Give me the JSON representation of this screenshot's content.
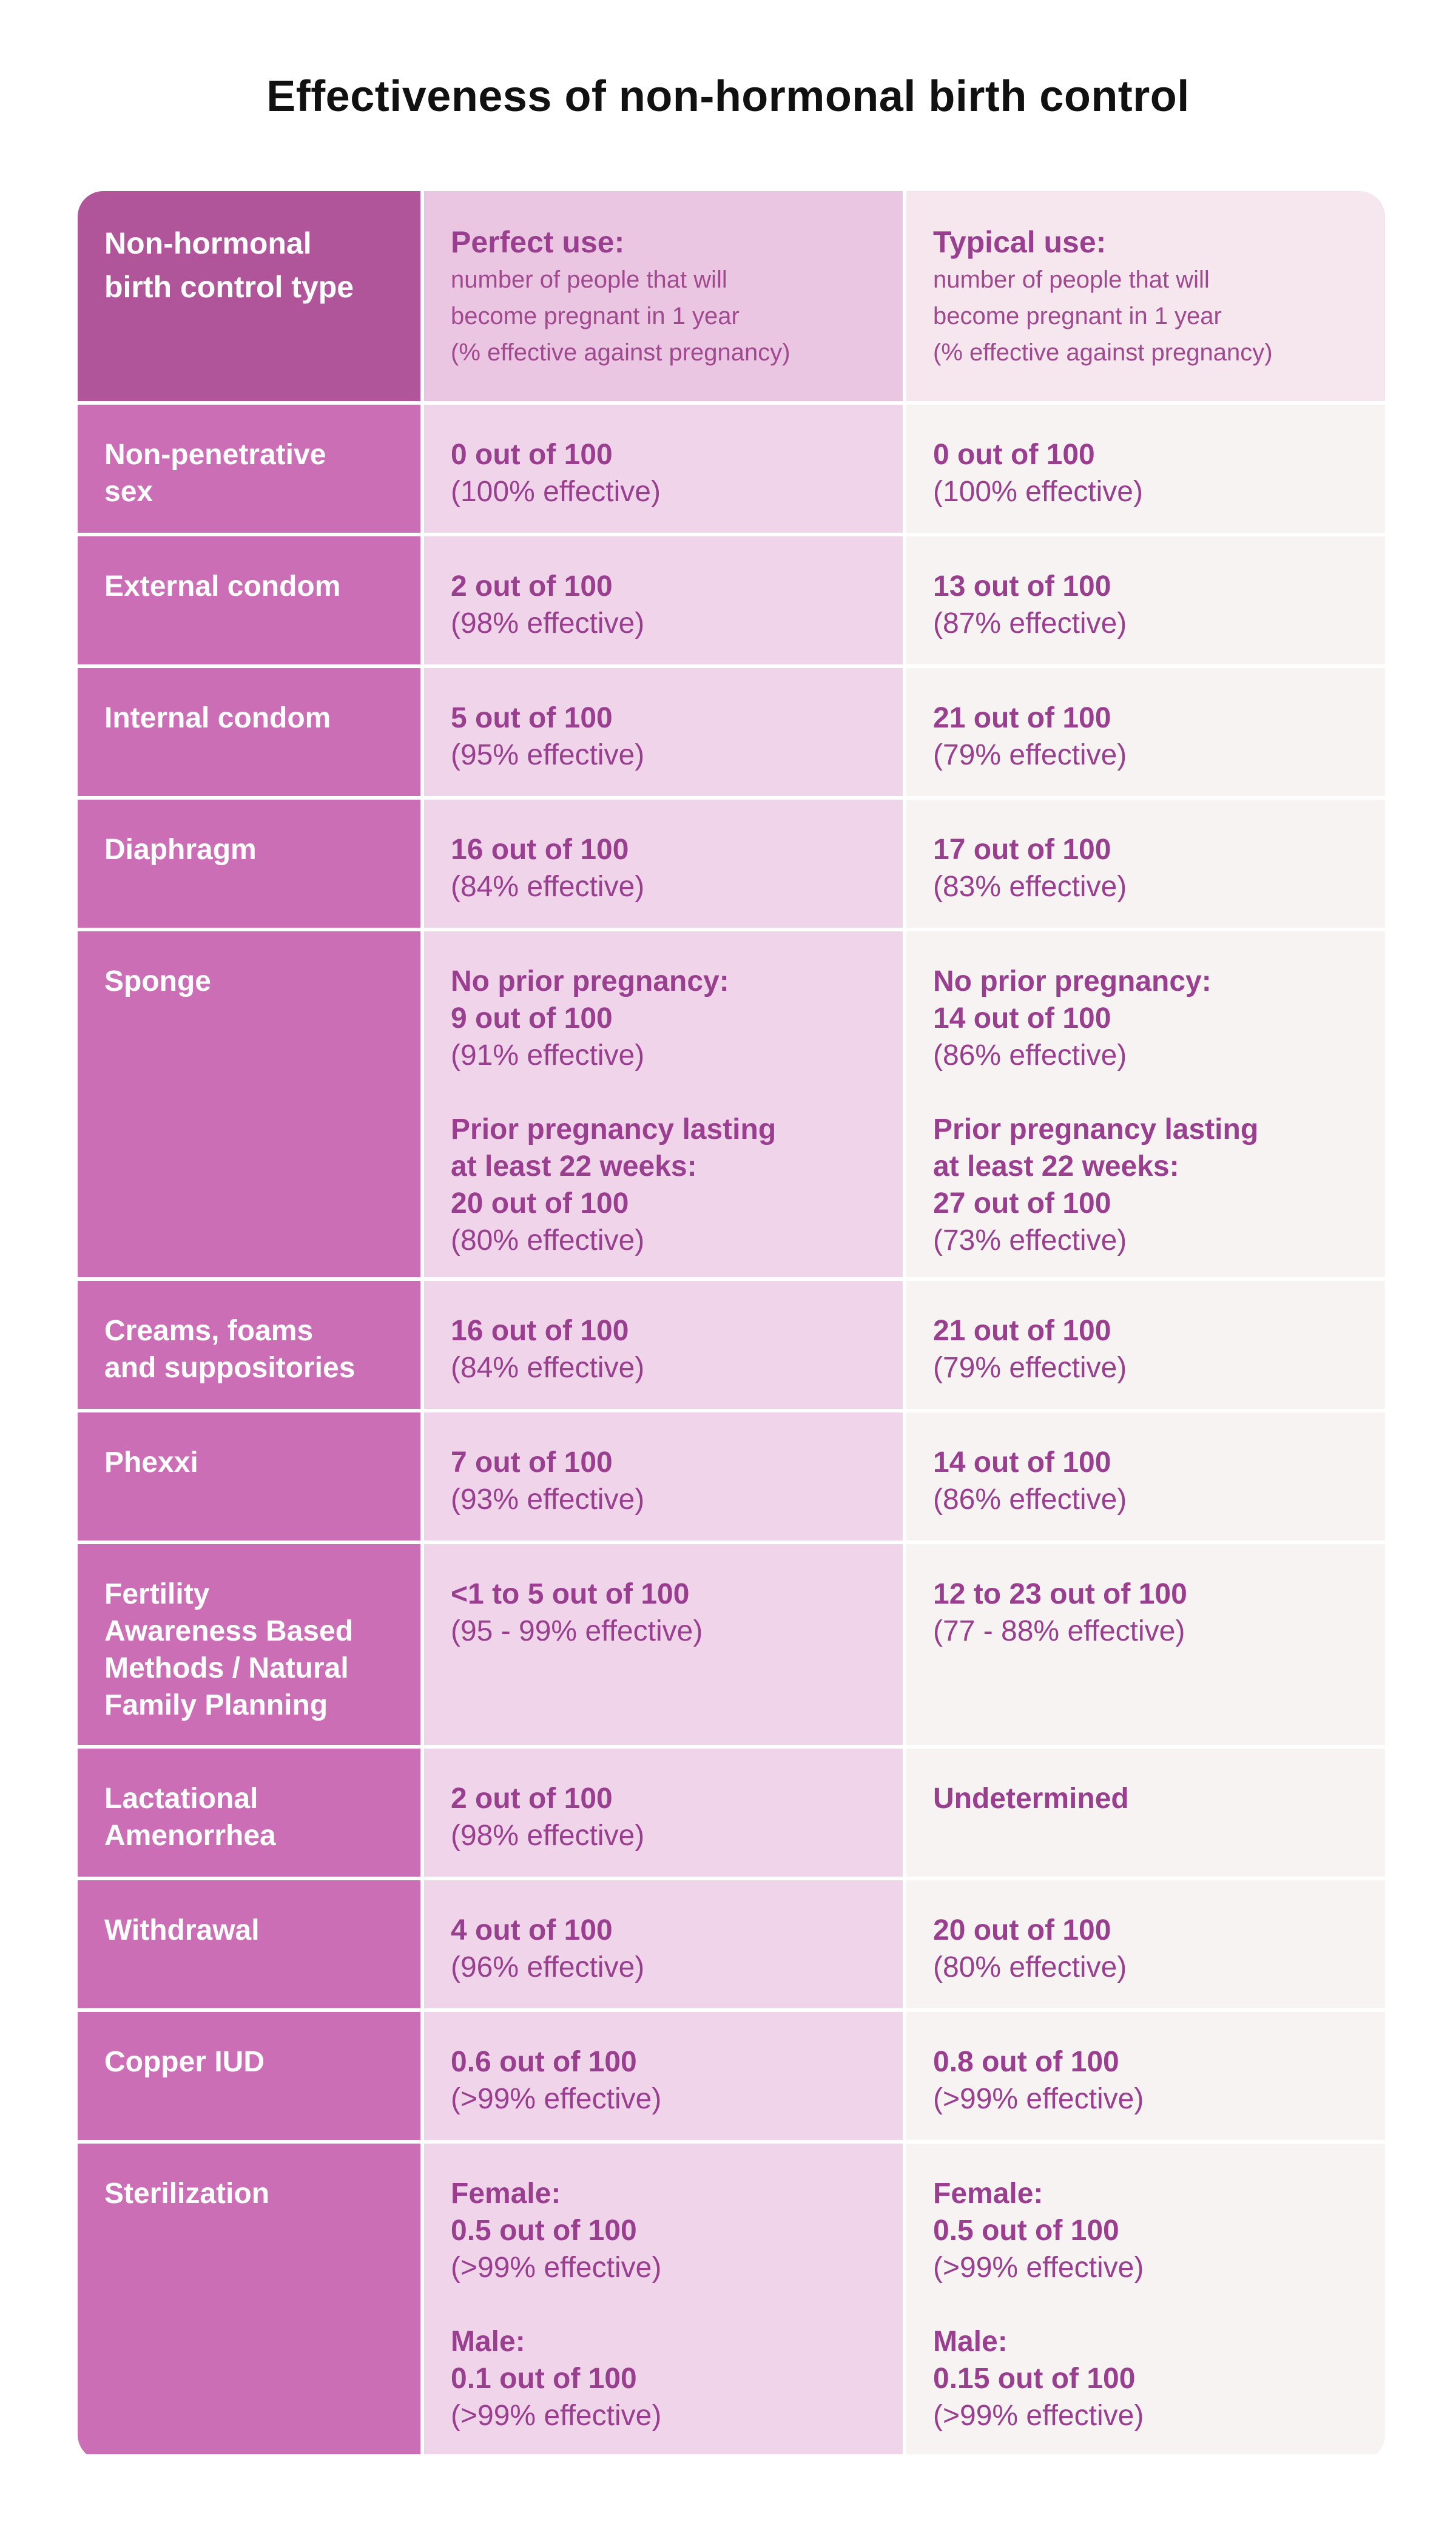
{
  "title": "Effectiveness of non-hormonal birth control",
  "header": {
    "type_label": "Non-hormonal\nbirth control type",
    "perfect_title": "Perfect use:",
    "perfect_desc": "number of people that will\nbecome pregnant in 1 year\n(% effective against pregnancy)",
    "typical_title": "Typical use:",
    "typical_desc": "number of people that will\nbecome pregnant in 1 year\n(% effective against pregnancy)"
  },
  "rows": [
    {
      "label": "Non-penetrative\nsex",
      "perfect": [
        {
          "t": "0 out of 100",
          "b": true
        },
        {
          "t": "(100% effective)",
          "b": false
        }
      ],
      "typical": [
        {
          "t": "0 out of 100",
          "b": true
        },
        {
          "t": "(100% effective)",
          "b": false
        }
      ]
    },
    {
      "label": "External condom",
      "perfect": [
        {
          "t": "2 out of 100",
          "b": true
        },
        {
          "t": "(98% effective)",
          "b": false
        }
      ],
      "typical": [
        {
          "t": "13 out of 100",
          "b": true
        },
        {
          "t": "(87% effective)",
          "b": false
        }
      ]
    },
    {
      "label": "Internal condom",
      "perfect": [
        {
          "t": "5 out of 100",
          "b": true
        },
        {
          "t": "(95% effective)",
          "b": false
        }
      ],
      "typical": [
        {
          "t": "21 out of 100",
          "b": true
        },
        {
          "t": "(79% effective)",
          "b": false
        }
      ]
    },
    {
      "label": "Diaphragm",
      "perfect": [
        {
          "t": "16 out of 100",
          "b": true
        },
        {
          "t": "(84% effective)",
          "b": false
        }
      ],
      "typical": [
        {
          "t": "17 out of 100",
          "b": true
        },
        {
          "t": "(83% effective)",
          "b": false
        }
      ]
    },
    {
      "label": "Sponge",
      "perfect": [
        {
          "t": "No prior pregnancy:",
          "b": true
        },
        {
          "t": "9 out of 100",
          "b": true
        },
        {
          "t": "(91% effective)",
          "b": false
        },
        {
          "t": "",
          "b": false
        },
        {
          "t": "Prior pregnancy lasting",
          "b": true
        },
        {
          "t": "at least 22 weeks:",
          "b": true
        },
        {
          "t": "20 out of 100",
          "b": true
        },
        {
          "t": "(80% effective)",
          "b": false
        }
      ],
      "typical": [
        {
          "t": "No prior pregnancy:",
          "b": true
        },
        {
          "t": "14 out of 100",
          "b": true
        },
        {
          "t": "(86% effective)",
          "b": false
        },
        {
          "t": "",
          "b": false
        },
        {
          "t": "Prior pregnancy lasting",
          "b": true
        },
        {
          "t": "at least 22 weeks:",
          "b": true
        },
        {
          "t": "27 out of 100",
          "b": true
        },
        {
          "t": "(73% effective)",
          "b": false
        }
      ]
    },
    {
      "label": "Creams, foams\nand suppositories",
      "perfect": [
        {
          "t": "16 out of 100",
          "b": true
        },
        {
          "t": "(84% effective)",
          "b": false
        }
      ],
      "typical": [
        {
          "t": "21 out of 100",
          "b": true
        },
        {
          "t": "(79% effective)",
          "b": false
        }
      ]
    },
    {
      "label": "Phexxi",
      "perfect": [
        {
          "t": "7 out of 100",
          "b": true
        },
        {
          "t": "(93% effective)",
          "b": false
        }
      ],
      "typical": [
        {
          "t": "14 out of 100",
          "b": true
        },
        {
          "t": "(86% effective)",
          "b": false
        }
      ]
    },
    {
      "label": "Fertility\nAwareness Based\nMethods / Natural\nFamily Planning",
      "perfect": [
        {
          "t": "<1 to 5 out of 100",
          "b": true
        },
        {
          "t": "(95 - 99% effective)",
          "b": false
        }
      ],
      "typical": [
        {
          "t": "12 to 23 out of 100",
          "b": true
        },
        {
          "t": "(77 - 88% effective)",
          "b": false
        }
      ]
    },
    {
      "label": "Lactational\nAmenorrhea",
      "perfect": [
        {
          "t": "2 out of 100",
          "b": true
        },
        {
          "t": "(98% effective)",
          "b": false
        }
      ],
      "typical": [
        {
          "t": "Undetermined",
          "b": true
        }
      ]
    },
    {
      "label": "Withdrawal",
      "perfect": [
        {
          "t": "4 out of 100",
          "b": true
        },
        {
          "t": "(96% effective)",
          "b": false
        }
      ],
      "typical": [
        {
          "t": "20 out of 100",
          "b": true
        },
        {
          "t": "(80% effective)",
          "b": false
        }
      ]
    },
    {
      "label": "Copper IUD",
      "perfect": [
        {
          "t": "0.6 out of 100",
          "b": true
        },
        {
          "t": "(>99% effective)",
          "b": false
        }
      ],
      "typical": [
        {
          "t": "0.8 out of 100",
          "b": true
        },
        {
          "t": "(>99% effective)",
          "b": false
        }
      ]
    },
    {
      "label": "Sterilization",
      "perfect": [
        {
          "t": "Female:",
          "b": true
        },
        {
          "t": "0.5 out of 100",
          "b": true
        },
        {
          "t": "(>99% effective)",
          "b": false
        },
        {
          "t": "",
          "b": false
        },
        {
          "t": "Male:",
          "b": true
        },
        {
          "t": "0.1 out of 100",
          "b": true
        },
        {
          "t": "(>99% effective)",
          "b": false
        }
      ],
      "typical": [
        {
          "t": "Female:",
          "b": true
        },
        {
          "t": "0.5 out of 100",
          "b": true
        },
        {
          "t": "(>99% effective)",
          "b": false
        },
        {
          "t": "",
          "b": false
        },
        {
          "t": "Male:",
          "b": true
        },
        {
          "t": "0.15 out of 100",
          "b": true
        },
        {
          "t": "(>99% effective)",
          "b": false
        }
      ]
    }
  ]
}
